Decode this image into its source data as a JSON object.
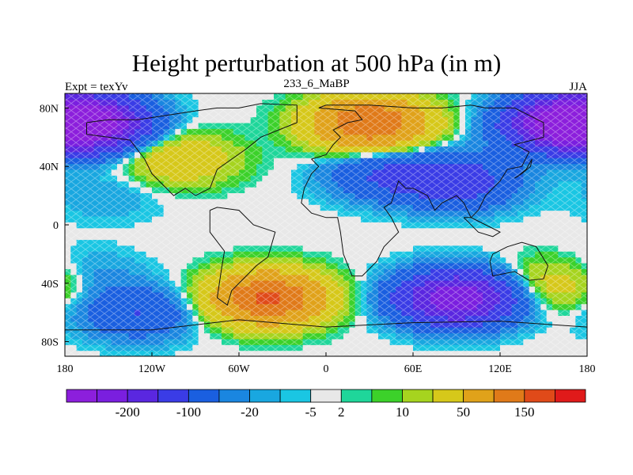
{
  "title": "Height perturbation at 500 hPa (in m)",
  "subtitle_left": "Expt = texYv",
  "subtitle_center": "233_6_MaBP",
  "subtitle_right": "JJA",
  "axes": {
    "x_ticks": [
      "180",
      "120W",
      "60W",
      "0",
      "60E",
      "120E",
      "180"
    ],
    "y_ticks": [
      "80N",
      "40N",
      "0",
      "40S",
      "80S"
    ]
  },
  "colorbar": {
    "colors": [
      "#8c1fdc",
      "#7a1fdf",
      "#5a27e0",
      "#3a3ce6",
      "#1a5fe0",
      "#1a86e0",
      "#19a7e0",
      "#1ac6e3",
      "#e8e8e8",
      "#1fd69a",
      "#3cd12a",
      "#a6d41f",
      "#d6c81a",
      "#e0a21a",
      "#e07a19",
      "#e04a19",
      "#e01a1a"
    ],
    "labels": [
      "-200",
      "-100",
      "-20",
      "-5",
      "2",
      "10",
      "50",
      "150"
    ],
    "label_after_box": [
      1,
      3,
      5,
      7,
      8,
      10,
      12,
      14
    ]
  },
  "map_data": {
    "variable": "height perturbation",
    "units": "m",
    "anomalies": [
      {
        "lon": -165,
        "lat": 70,
        "value": -220
      },
      {
        "lon": 165,
        "lat": 70,
        "value": -220
      },
      {
        "lon": 30,
        "lat": 70,
        "value": 150
      },
      {
        "lon": 40,
        "lat": 35,
        "value": -50
      },
      {
        "lon": 90,
        "lat": 30,
        "value": -80
      },
      {
        "lon": -100,
        "lat": 45,
        "value": 40
      },
      {
        "lon": -150,
        "lat": 20,
        "value": -10
      },
      {
        "lon": -40,
        "lat": -50,
        "value": 160
      },
      {
        "lon": 90,
        "lat": -50,
        "value": -200
      },
      {
        "lon": -130,
        "lat": -60,
        "value": -50
      },
      {
        "lon": -170,
        "lat": -35,
        "value": -20
      },
      {
        "lon": 160,
        "lat": -40,
        "value": 40
      }
    ]
  }
}
